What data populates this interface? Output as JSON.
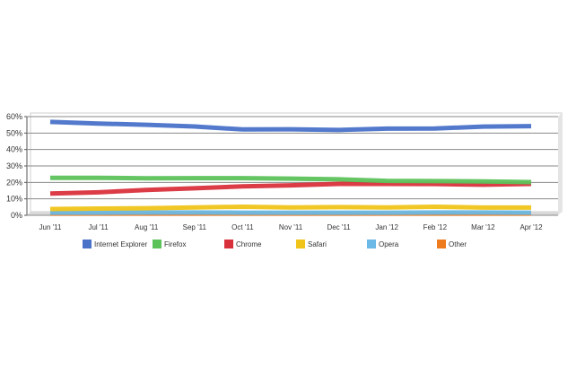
{
  "chart_data": {
    "type": "line",
    "title": "",
    "xlabel": "",
    "ylabel": "",
    "categories": [
      "Jun '11",
      "Jul '11",
      "Aug '11",
      "Sep '11",
      "Oct '11",
      "Nov '11",
      "Dec '11",
      "Jan '12",
      "Feb '12",
      "Mar '12",
      "Apr '12"
    ],
    "y_ticks": [
      "0%",
      "10%",
      "20%",
      "30%",
      "40%",
      "50%",
      "60%"
    ],
    "ylim": [
      0,
      60
    ],
    "grid": true,
    "legend_position": "bottom",
    "series": [
      {
        "name": "Internet Explorer",
        "color": "#4a72c9",
        "values": [
          56.8,
          55.8,
          55.0,
          54.0,
          52.2,
          52.3,
          51.9,
          52.7,
          52.8,
          53.9,
          54.2
        ]
      },
      {
        "name": "Firefox",
        "color": "#5cc25a",
        "values": [
          22.8,
          22.8,
          22.5,
          22.6,
          22.6,
          22.3,
          21.9,
          20.9,
          20.8,
          20.6,
          20.2
        ]
      },
      {
        "name": "Chrome",
        "color": "#d9313c",
        "values": [
          13.2,
          14.0,
          15.4,
          16.4,
          17.6,
          18.2,
          19.1,
          19.1,
          19.0,
          18.6,
          19.1
        ]
      },
      {
        "name": "Safari",
        "color": "#f0c419",
        "values": [
          3.8,
          4.1,
          4.3,
          4.8,
          5.2,
          4.8,
          5.0,
          4.8,
          5.2,
          4.7,
          4.7
        ]
      },
      {
        "name": "Opera",
        "color": "#6cb8e6",
        "values": [
          1.6,
          1.6,
          1.7,
          1.7,
          1.6,
          1.6,
          1.6,
          1.6,
          1.7,
          1.7,
          1.6
        ]
      },
      {
        "name": "Other",
        "color": "#ee7c1e",
        "values": [
          1.0,
          1.0,
          1.0,
          1.0,
          1.0,
          1.0,
          1.0,
          1.0,
          1.0,
          1.0,
          1.0
        ]
      }
    ]
  }
}
